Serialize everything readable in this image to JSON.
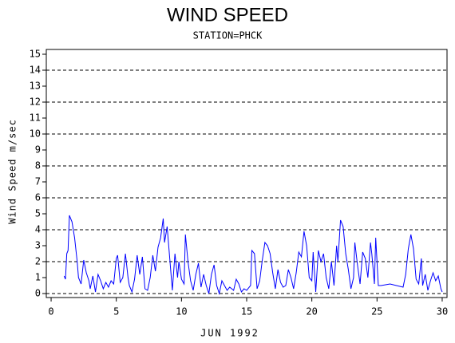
{
  "chart_data": {
    "type": "line",
    "title": "WIND SPEED",
    "subtitle": "STATION=PHCK",
    "x_label": "JUN 1992",
    "y_label": "Wind Speed m/sec",
    "xlim": [
      -0.37,
      30.37
    ],
    "xticks": [
      0,
      5,
      10,
      15,
      20,
      25,
      30
    ],
    "ylim": [
      -0.25,
      15.3
    ],
    "yticks": [
      0,
      1,
      2,
      3,
      4,
      5,
      6,
      7,
      8,
      9,
      10,
      11,
      12,
      13,
      14,
      15
    ],
    "grid_at": [
      0,
      2,
      4,
      6,
      8,
      10,
      12,
      14
    ],
    "series": [
      {
        "color": "#0000ff",
        "x": [
          1.0,
          1.1,
          1.2,
          1.3,
          1.4,
          1.6,
          1.8,
          2.0,
          2.1,
          2.3,
          2.5,
          2.7,
          2.9,
          3.0,
          3.2,
          3.4,
          3.6,
          3.8,
          4.0,
          4.2,
          4.4,
          4.6,
          4.8,
          5.0,
          5.1,
          5.3,
          5.5,
          5.7,
          5.9,
          6.0,
          6.2,
          6.4,
          6.6,
          6.8,
          7.0,
          7.2,
          7.4,
          7.6,
          7.8,
          8.0,
          8.2,
          8.4,
          8.6,
          8.7,
          8.9,
          9.1,
          9.3,
          9.5,
          9.7,
          9.8,
          10.0,
          10.2,
          10.3,
          10.5,
          10.7,
          10.9,
          11.1,
          11.3,
          11.5,
          11.7,
          11.9,
          12.1,
          12.3,
          12.5,
          12.7,
          12.9,
          13.1,
          13.3,
          13.5,
          13.7,
          14.0,
          14.2,
          14.4,
          14.6,
          14.8,
          15.0,
          15.3,
          15.4,
          15.6,
          15.8,
          16.0,
          16.2,
          16.4,
          16.6,
          16.8,
          17.0,
          17.2,
          17.4,
          17.6,
          17.8,
          18.0,
          18.2,
          18.4,
          18.6,
          18.8,
          19.0,
          19.2,
          19.4,
          19.6,
          19.8,
          20.0,
          20.1,
          20.3,
          20.5,
          20.7,
          20.9,
          21.1,
          21.3,
          21.5,
          21.7,
          21.9,
          22.0,
          22.2,
          22.4,
          22.6,
          22.8,
          23.0,
          23.2,
          23.3,
          23.5,
          23.7,
          23.9,
          24.1,
          24.3,
          24.5,
          24.6,
          24.8,
          24.9,
          25.1,
          25.3,
          26.0,
          27.0,
          27.2,
          27.4,
          27.6,
          27.8,
          28.0,
          28.2,
          28.4,
          28.5,
          28.7,
          28.9,
          29.1,
          29.3,
          29.5,
          29.7,
          29.9,
          30.0
        ],
        "values": [
          1.1,
          0.9,
          2.5,
          2.7,
          4.9,
          4.5,
          3.5,
          2.0,
          1.0,
          0.6,
          2.1,
          1.3,
          0.8,
          0.3,
          1.1,
          0.1,
          1.2,
          0.8,
          0.3,
          0.7,
          0.4,
          0.8,
          0.6,
          2.2,
          2.4,
          0.7,
          1.0,
          2.5,
          1.0,
          0.5,
          0.1,
          0.9,
          2.4,
          1.2,
          2.3,
          0.3,
          0.2,
          1.0,
          2.4,
          1.4,
          2.9,
          3.5,
          4.7,
          3.2,
          4.2,
          2.2,
          0.2,
          2.5,
          1.0,
          2.0,
          0.9,
          0.6,
          3.7,
          2.0,
          0.8,
          0.2,
          1.2,
          1.9,
          0.4,
          1.2,
          0.5,
          0.0,
          1.2,
          1.8,
          0.5,
          0.0,
          0.8,
          0.5,
          0.2,
          0.4,
          0.2,
          0.9,
          0.6,
          0.1,
          0.3,
          0.2,
          0.5,
          2.7,
          2.5,
          0.3,
          0.8,
          2.1,
          3.2,
          3.0,
          2.5,
          1.3,
          0.3,
          1.5,
          0.7,
          0.4,
          0.5,
          1.5,
          1.0,
          0.3,
          1.3,
          2.6,
          2.3,
          3.9,
          3.0,
          1.0,
          0.8,
          2.6,
          0.1,
          2.7,
          2.0,
          2.5,
          1.0,
          0.3,
          2.0,
          0.5,
          3.0,
          2.0,
          4.6,
          4.2,
          2.5,
          1.5,
          0.3,
          1.0,
          3.2,
          1.8,
          0.6,
          2.6,
          2.2,
          1.0,
          3.2,
          2.5,
          0.6,
          3.5,
          0.5,
          0.5,
          0.6,
          0.4,
          1.2,
          2.8,
          3.7,
          2.8,
          0.9,
          0.6,
          2.2,
          0.5,
          1.2,
          0.2,
          0.8,
          1.3,
          0.8,
          1.1,
          0.3,
          0.1
        ]
      }
    ]
  }
}
